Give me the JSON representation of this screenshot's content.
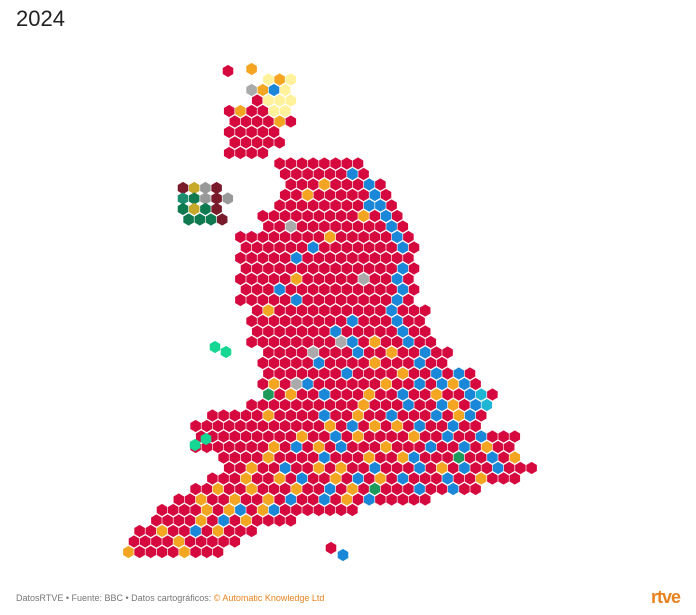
{
  "title": "2024",
  "footer": {
    "prefix": "DatosRTVE • Fuente: BBC • Datos cartográficos: ",
    "link": "© Automatic Knowledge Ltd"
  },
  "logo": "rtve",
  "party_colors": {
    "lab": "#d6093f",
    "con": "#1b87d8",
    "ld": "#f4a623",
    "snp": "#fff29a",
    "green": "#1e9a5c",
    "pc": "#16d694",
    "ind": "#aaaaaa",
    "reform": "#1fb6d6",
    "dup": "#7a1b2c",
    "sf": "#0f7a50",
    "alliance": "#c6a92b",
    "uup": "#2b3a7a",
    "sdlp": "#1b8c6d",
    "other": "#999999"
  }
}
